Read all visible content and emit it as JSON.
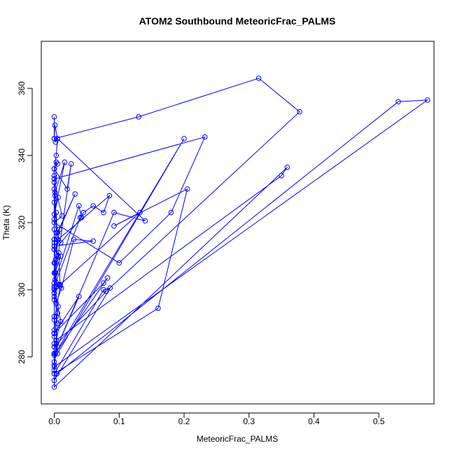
{
  "chart_data": {
    "type": "line",
    "title": "ATOM2 Southbound MeteoricFrac_PALMS",
    "xlabel": "MeteoricFrac_PALMS",
    "ylabel": "Theta (K)",
    "xlim": [
      -0.02,
      0.585
    ],
    "ylim": [
      266,
      374
    ],
    "xticks": [
      0.0,
      0.1,
      0.2,
      0.3,
      0.4,
      0.5
    ],
    "xtick_labels": [
      "0.0",
      "0.1",
      "0.2",
      "0.3",
      "0.4",
      "0.5"
    ],
    "yticks": [
      280,
      300,
      320,
      340,
      360
    ],
    "ytick_labels": [
      "280",
      "300",
      "320",
      "340",
      "360"
    ],
    "grid": false,
    "legend": "none",
    "series_color": "#0000ff",
    "marker": "open-circle",
    "series": [
      {
        "x": [
          0.0,
          0.0,
          0.001,
          0.005,
          0.002,
          0.0,
          0.13,
          0.315,
          0.378,
          0.08,
          0.0,
          0.01,
          0.0,
          0.04,
          0.045,
          0.06,
          0.076,
          0.085,
          0.0,
          0.0,
          0.003,
          0.005,
          0.0,
          0.02,
          0.026,
          0.0,
          0.038,
          0.042,
          0.01,
          0.005,
          0.003,
          0.0,
          0.0,
          0.012,
          0.0,
          0.1,
          0.18,
          0.232,
          0.0,
          0.0,
          0.0,
          0.0,
          0.092,
          0.14,
          0.005,
          0.003,
          0.0,
          0.0,
          0.0,
          0.001,
          0.0,
          0.006,
          0.0,
          0.016,
          0.001,
          0.003,
          0.0,
          0.006,
          0.001,
          0.0,
          0.004,
          0.007,
          0.0,
          0.0,
          0.003,
          0.011,
          0.03,
          0.06,
          0.0,
          0.002,
          0.008,
          0.032,
          0.0,
          0.005,
          0.0,
          0.0,
          0.009,
          0.132,
          0.092,
          0.205,
          0.16,
          0.0,
          0.0,
          0.0,
          0.002,
          0.005,
          0.0,
          0.0,
          0.009,
          0.007,
          0.0,
          0.002,
          0.001,
          0.0,
          0.0,
          0.005,
          0.0,
          0.0,
          0.038,
          0.0,
          0.0,
          0.0,
          0.0,
          0.0,
          0.0,
          0.076,
          0.082,
          0.0,
          0.2,
          0.005,
          0.003,
          0.35,
          0.359,
          0.0,
          0.0,
          0.076,
          0.086,
          0.0,
          0.004,
          0.53,
          0.575,
          0.0,
          0.005,
          0.003,
          0.006,
          0.0,
          0.004,
          0.001,
          0.01,
          0.0,
          0.0
        ],
        "y": [
          351.5,
          345.0,
          349.0,
          345.0,
          344.0,
          345.0,
          351.5,
          363.0,
          353.0,
          299.5,
          283.0,
          290.5,
          301.0,
          321.5,
          323.0,
          325.0,
          323.0,
          328.0,
          314.0,
          318.0,
          338.0,
          337.5,
          336.0,
          330.0,
          337.5,
          302.0,
          325.0,
          321.5,
          314.0,
          315.0,
          323.0,
          321.0,
          332.0,
          322.0,
          320.0,
          308.0,
          323.0,
          345.5,
          333.0,
          312.0,
          288.0,
          281.0,
          323.0,
          320.5,
          345.0,
          340.0,
          336.0,
          334.0,
          330.0,
          328.0,
          326.0,
          327.5,
          322.5,
          338.0,
          329.0,
          317.0,
          313.0,
          310.0,
          308.0,
          305.0,
          302.0,
          301.5,
          300.0,
          298.0,
          296.0,
          300.5,
          315.0,
          314.5,
          313.0,
          309.0,
          318.0,
          328.5,
          315.0,
          317.0,
          300.5,
          299.0,
          301.5,
          323.0,
          319.0,
          330.0,
          294.5,
          275.0,
          277.5,
          276.0,
          281.0,
          283.0,
          292.0,
          291.0,
          301.0,
          311.0,
          308.0,
          305.0,
          303.0,
          300.0,
          297.0,
          293.0,
          286.0,
          281.0,
          298.0,
          287.0,
          283.0,
          278.5,
          281.0,
          284.0,
          287.0,
          302.0,
          303.5,
          280.5,
          345.0,
          281.0,
          285.0,
          334.0,
          336.5,
          271.0,
          275.0,
          300.0,
          300.5,
          273.0,
          275.0,
          356.0,
          356.5,
          277.0,
          290.0,
          292.0,
          295.0,
          299.0,
          301.0,
          305.0,
          310.0,
          312.0,
          315.0
        ]
      }
    ]
  }
}
